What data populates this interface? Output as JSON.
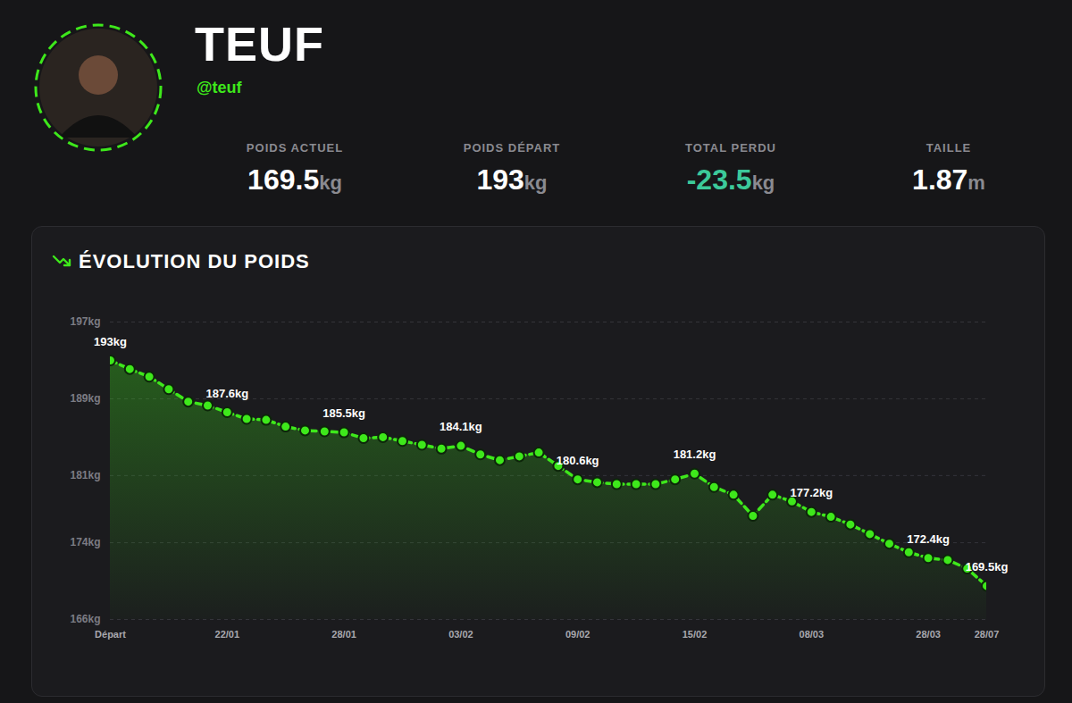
{
  "header": {
    "name": "TEUF",
    "handle": "@teuf",
    "stats": [
      {
        "label": "POIDS ACTUEL",
        "value": 169.5,
        "unit": "kg"
      },
      {
        "label": "POIDS DÉPART",
        "value": 193,
        "unit": "kg"
      },
      {
        "label": "TOTAL PERDU",
        "value": -23.5,
        "unit": "kg"
      },
      {
        "label": "TAILLE",
        "value": 1.87,
        "unit": "m"
      }
    ]
  },
  "chart_data": {
    "type": "line",
    "title": "ÉVOLUTION DU POIDS",
    "categories": [
      "Départ",
      null,
      null,
      null,
      null,
      null,
      "22/01",
      null,
      null,
      null,
      null,
      null,
      "28/01",
      null,
      null,
      null,
      null,
      null,
      "03/02",
      null,
      null,
      null,
      null,
      null,
      "09/02",
      null,
      null,
      null,
      null,
      null,
      "15/02",
      null,
      null,
      null,
      null,
      null,
      "08/03",
      null,
      null,
      null,
      null,
      null,
      "28/03",
      null,
      null,
      "28/07"
    ],
    "series": [
      {
        "name": "Poids",
        "color": "#3ee81b",
        "marker": "circle",
        "line_style": "dashed",
        "values": [
          193,
          192.1,
          191.3,
          190.0,
          188.7,
          188.3,
          187.6,
          186.9,
          186.8,
          186.1,
          185.7,
          185.6,
          185.5,
          184.9,
          185.0,
          184.6,
          184.2,
          183.8,
          184.1,
          183.2,
          182.6,
          183.0,
          183.4,
          182.0,
          180.6,
          180.3,
          180.1,
          180.1,
          180.1,
          180.6,
          181.2,
          179.8,
          179.0,
          176.8,
          179.0,
          178.3,
          177.2,
          176.7,
          175.9,
          174.9,
          173.9,
          173.0,
          172.4,
          172.2,
          171.3,
          169.5
        ],
        "value_labels": [
          "193kg",
          null,
          null,
          null,
          null,
          null,
          "187.6kg",
          null,
          null,
          null,
          null,
          null,
          "185.5kg",
          null,
          null,
          null,
          null,
          null,
          "184.1kg",
          null,
          null,
          null,
          null,
          null,
          "180.6kg",
          null,
          null,
          null,
          null,
          null,
          "181.2kg",
          null,
          null,
          null,
          null,
          null,
          "177.2kg",
          null,
          null,
          null,
          null,
          null,
          "172.4kg",
          null,
          null,
          "169.5kg"
        ]
      }
    ],
    "data_labels": true,
    "ylim": [
      166,
      197
    ],
    "yticks": [
      {
        "value": 166,
        "label": "166kg"
      },
      {
        "value": 174,
        "label": "174kg"
      },
      {
        "value": 181,
        "label": "181kg"
      },
      {
        "value": 189,
        "label": "189kg"
      },
      {
        "value": 197,
        "label": "197kg"
      }
    ],
    "grid": true
  }
}
